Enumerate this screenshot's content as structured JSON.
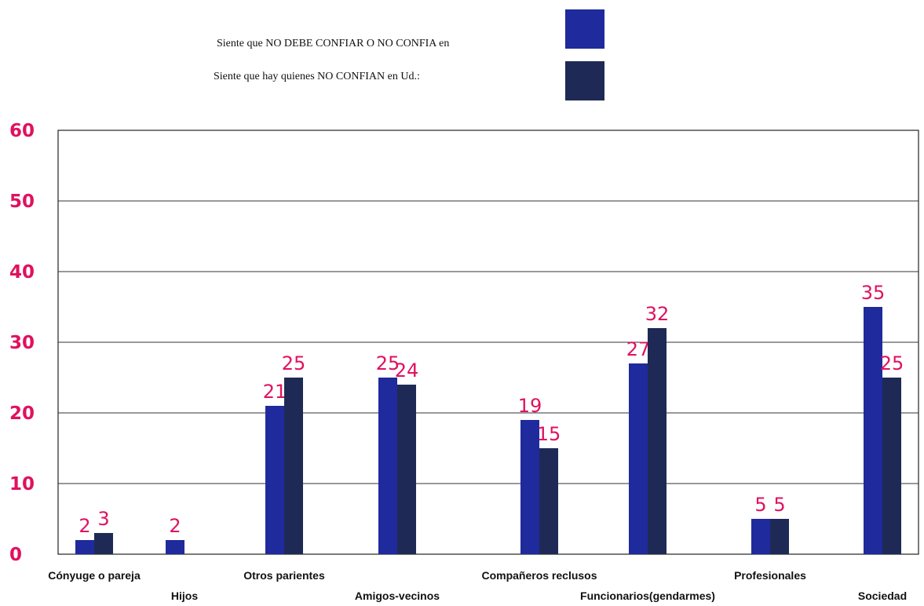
{
  "chart_data": {
    "type": "bar",
    "categories": [
      "Cónyuge o pareja",
      "Hijos",
      "Otros parientes",
      "Amigos-vecinos",
      "Compañeros reclusos",
      "Funcionarios(gendarmes)",
      "Profesionales",
      "Sociedad"
    ],
    "series": [
      {
        "name": "Siente que NO DEBE CONFIAR O NO CONFIA en",
        "values": [
          2,
          2,
          21,
          25,
          19,
          27,
          5,
          35
        ],
        "data_labels": [
          "2",
          "2",
          "21",
          "25",
          "19",
          "27",
          "5",
          "35"
        ],
        "color": "#1f2a9c"
      },
      {
        "name": "Siente que hay quienes NO CONFIAN en Ud.:",
        "values": [
          3,
          null,
          25,
          24,
          15,
          32,
          5,
          25
        ],
        "data_labels": [
          "3",
          "",
          "25",
          "24",
          "15",
          "32",
          "5",
          "25"
        ],
        "color": "#1e2a55"
      }
    ],
    "yticks": [
      "0",
      "10",
      "20",
      "30",
      "40",
      "50",
      "60"
    ],
    "ylim": [
      0,
      60
    ],
    "grid": true,
    "legend_position": "top-center"
  }
}
